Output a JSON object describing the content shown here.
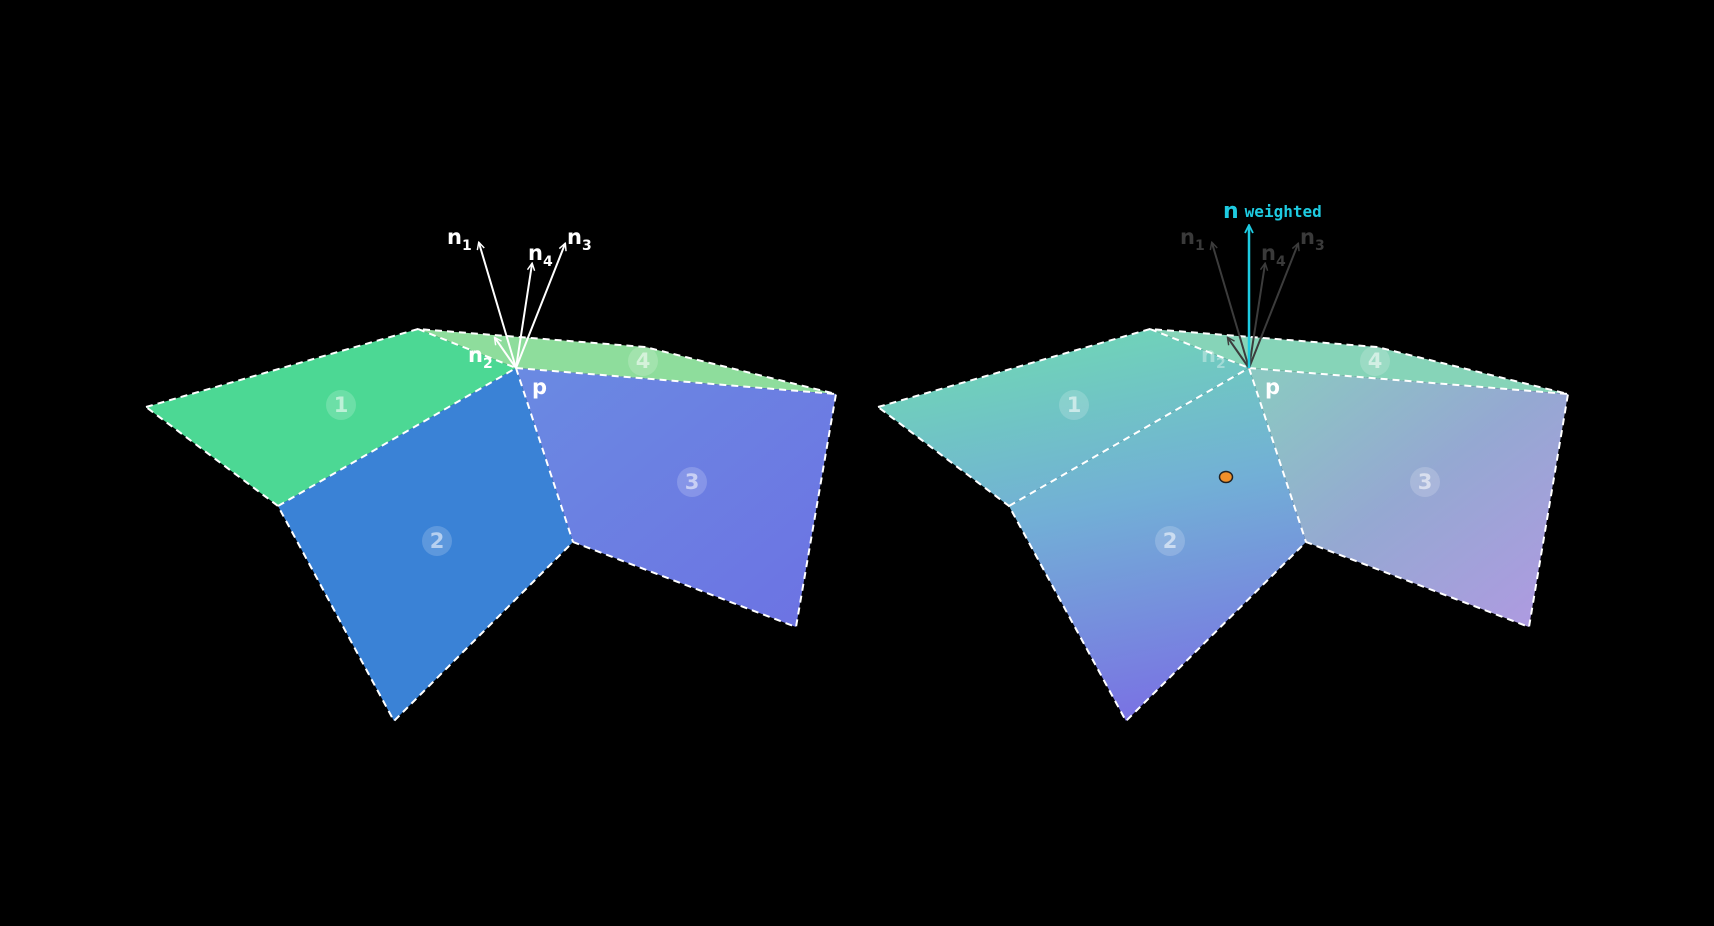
{
  "colors": {
    "background": "#000000",
    "face1": "#4cd894",
    "face2": "#3a82d6",
    "face4": "#8edd9c",
    "face3_start": "#6a89e2",
    "face3_end": "#6c73e2",
    "edge": "#ffffff",
    "normal_arrow": "#ffffff",
    "faded_arrow": "#3a3a3a",
    "weighted_normal": "#1ecbe1",
    "sample_point": "#f0902a"
  },
  "left_panel": {
    "faces": [
      "1",
      "2",
      "3",
      "4"
    ],
    "vertex": "p",
    "normals": [
      {
        "base": "n",
        "sub": "1"
      },
      {
        "base": "n",
        "sub": "2"
      },
      {
        "base": "n",
        "sub": "3"
      },
      {
        "base": "n",
        "sub": "4"
      }
    ]
  },
  "right_panel": {
    "faces": [
      "1",
      "2",
      "3",
      "4"
    ],
    "vertex": "p",
    "normals": [
      {
        "base": "n",
        "sub": "1"
      },
      {
        "base": "n",
        "sub": "2"
      },
      {
        "base": "n",
        "sub": "3"
      },
      {
        "base": "n",
        "sub": "4"
      }
    ],
    "weighted_normal": {
      "base": "n",
      "sub": "weighted"
    }
  }
}
